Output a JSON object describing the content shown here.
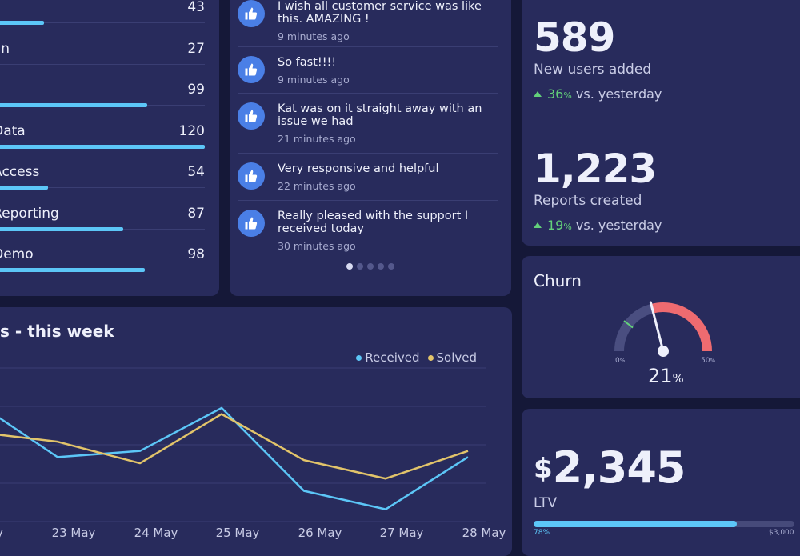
{
  "categories": [
    {
      "label": "",
      "value": "43",
      "fraction": 0.27
    },
    {
      "label": "min",
      "value": "27",
      "fraction": 0.04
    },
    {
      "label": "",
      "value": "99",
      "fraction": 0.74
    },
    {
      "label": ": Data",
      "value": "120",
      "fraction": 1.0
    },
    {
      "label": ": Access",
      "value": "54",
      "fraction": 0.29
    },
    {
      "label": ": Reporting",
      "value": "87",
      "fraction": 0.63
    },
    {
      "label": ": Demo",
      "value": "98",
      "fraction": 0.73
    }
  ],
  "feedback": {
    "items": [
      {
        "text": "I wish all customer service was like this. AMAZING !",
        "time": "9 minutes ago"
      },
      {
        "text": "So fast!!!!",
        "time": "9 minutes ago"
      },
      {
        "text": "Kat was on it straight away with an issue we had",
        "time": "21 minutes ago"
      },
      {
        "text": "Very responsive and helpful",
        "time": "22 minutes ago"
      },
      {
        "text": "Really pleased with the support I received today",
        "time": "30 minutes ago"
      }
    ],
    "pages": 5,
    "active_page": 0
  },
  "stats": {
    "new_users": {
      "number": "589",
      "label": "New users added",
      "change": "36",
      "suffix": "vs. yesterday"
    },
    "reports": {
      "number": "1,223",
      "label": "Reports created",
      "change": "19",
      "suffix": "vs. yesterday"
    }
  },
  "churn": {
    "title": "Churn",
    "value": "21",
    "min_label": "0",
    "max_label": "50",
    "value_fraction": 0.42,
    "target_fraction": 0.21,
    "colors": {
      "low": "#4a4e80",
      "high": "#ee6b70",
      "marker": "#63d07a"
    }
  },
  "ltv": {
    "currency": "$",
    "amount": "2,345",
    "label": "LTV",
    "progress_label": "78%",
    "target_label": "$3,000",
    "progress": 0.78
  },
  "tickets_chart": {
    "title": "s - this week",
    "legend": [
      "Received",
      "Solved"
    ]
  },
  "chart_data": {
    "type": "line",
    "title": "s - this week",
    "categories": [
      "ay",
      "23 May",
      "24 May",
      "25 May",
      "26 May",
      "27 May",
      "28 May"
    ],
    "series": [
      {
        "name": "Received",
        "color": "#5cc6f7",
        "values": [
          38,
          21,
          23,
          37,
          10,
          4,
          21
        ]
      },
      {
        "name": "Solved",
        "color": "#e2c46a",
        "values": [
          29,
          26,
          19,
          35,
          20,
          14,
          23
        ]
      }
    ],
    "ylim": [
      0,
      50
    ],
    "grid": true,
    "legend_position": "top-right"
  },
  "colors": {
    "bg": "#151838",
    "panel": "#282b5c",
    "accent": "#5cc6f7",
    "positive": "#63d07a",
    "gold": "#e2c46a"
  },
  "icons": {
    "feedback": "thumbs-up-icon",
    "change": "triangle-up-icon"
  }
}
